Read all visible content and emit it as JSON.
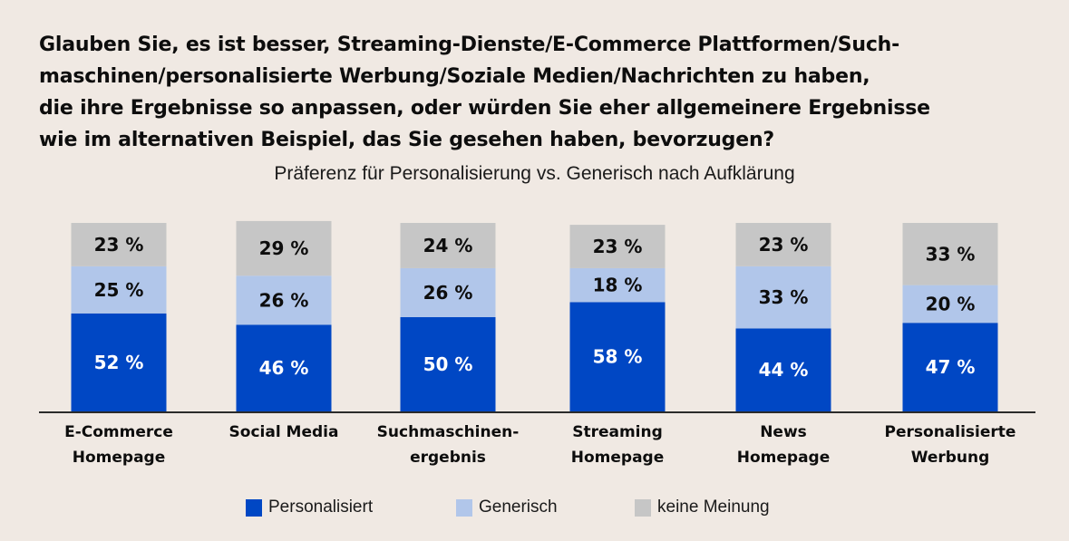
{
  "question": {
    "lines": [
      "Glauben Sie, es ist besser, Streaming-Dienste/E-Commerce Plattformen/Such-",
      "maschinen/personalisierte Werbung/Soziale Medien/Nachrichten zu haben,",
      "die ihre Ergebnisse so anpassen, oder würden Sie eher allgemeinere Ergebnisse",
      "wie im alternativen Beispiel, das Sie gesehen haben, bevorzugen?"
    ]
  },
  "chart_data": {
    "type": "bar",
    "stacked": true,
    "title": "Glauben Sie, es ist besser, Streaming-Dienste/E-Commerce Plattformen/Suchmaschinen/personalisierte Werbung/Soziale Medien/Nachrichten zu haben, die ihre Ergebnisse so anpassen, oder würden Sie eher allgemeinere Ergebnisse wie im alternativen Beispiel, das Sie gesehen haben, bevorzugen?",
    "subtitle": "Präferenz für Personalisierung vs. Generisch nach Aufklärung",
    "xlabel": "",
    "ylabel": "",
    "ylim": [
      0,
      100
    ],
    "grid": false,
    "legend_position": "bottom",
    "value_suffix": " %",
    "categories": [
      [
        "E-Commerce",
        "Homepage"
      ],
      [
        "Social Media"
      ],
      [
        "Suchmaschinen-",
        "ergebnis"
      ],
      [
        "Streaming",
        "Homepage"
      ],
      [
        "News",
        "Homepage"
      ],
      [
        "Personalisierte",
        "Werbung"
      ]
    ],
    "series": [
      {
        "name": "Personalisiert",
        "color": "#0047c4",
        "label_color": "#ffffff",
        "values": [
          52,
          46,
          50,
          58,
          44,
          47
        ]
      },
      {
        "name": "Generisch",
        "color": "#b1c6ea",
        "label_color": "#0d0d0d",
        "values": [
          25,
          26,
          26,
          18,
          33,
          20
        ]
      },
      {
        "name": "keine Meinung",
        "color": "#c6c6c6",
        "label_color": "#0d0d0d",
        "values": [
          23,
          29,
          24,
          23,
          23,
          33
        ]
      }
    ]
  },
  "legend": {
    "items": [
      {
        "label": "Personalisiert",
        "color": "#0047c4"
      },
      {
        "label": "Generisch",
        "color": "#b1c6ea"
      },
      {
        "label": "keine Meinung",
        "color": "#c6c6c6"
      }
    ]
  },
  "colors": {
    "background": "#f0e9e3",
    "axis": "#2b2b2b"
  }
}
